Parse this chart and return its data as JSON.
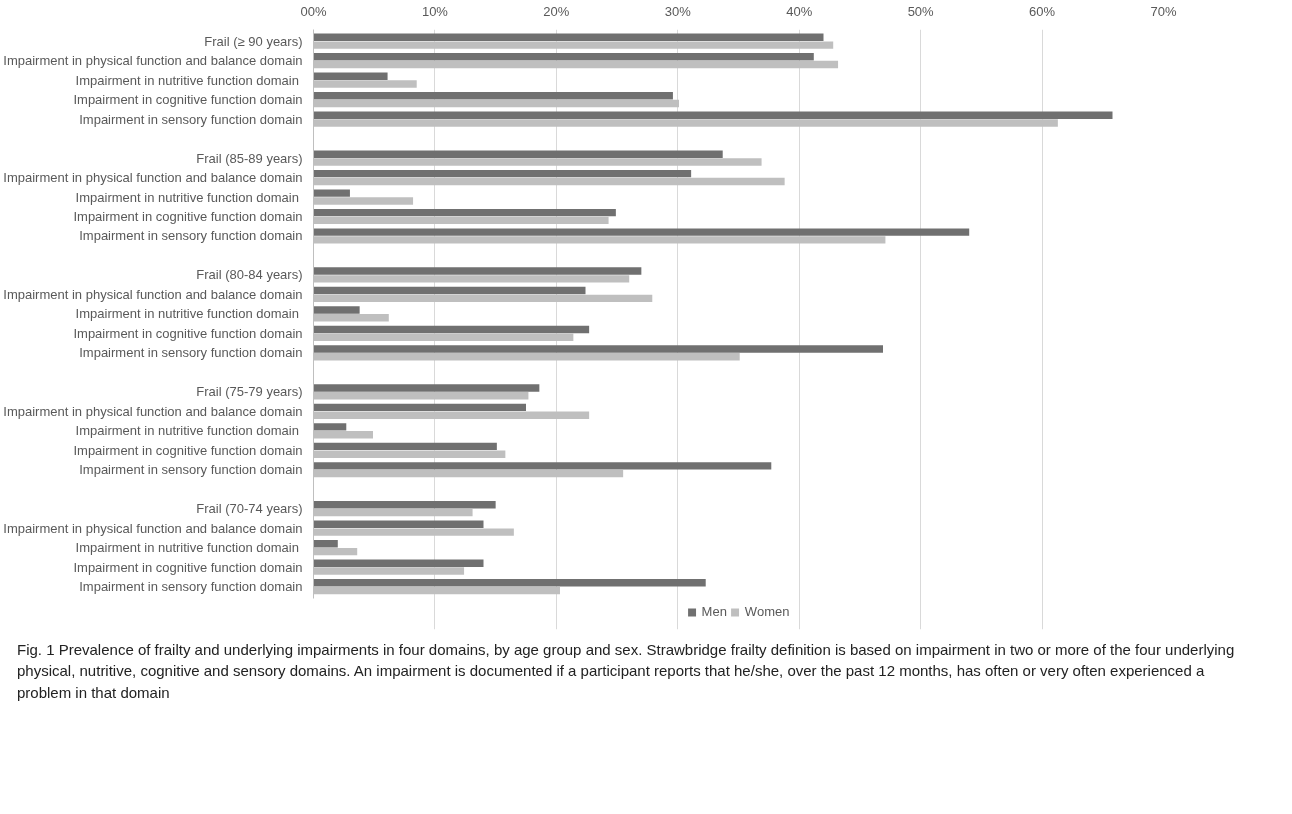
{
  "chart_data": {
    "type": "bar",
    "orientation": "horizontal",
    "categories": [
      "Frail (≥ 90 years)",
      "Impairment in physical function and balance domain",
      "Impairment in  nutritive function domain",
      "Impairment in cognitive function domain",
      "Impairment in sensory function domain",
      null,
      "Frail (85-89 years)",
      "Impairment in physical function and balance domain",
      "Impairment in  nutritive function domain",
      "Impairment in cognitive function domain",
      "Impairment in sensory function domain",
      null,
      "Frail (80-84 years)",
      "Impairment in physical function and balance domain",
      "Impairment in  nutritive function domain",
      "Impairment in cognitive function domain",
      "Impairment in sensory function domain",
      null,
      "Frail (75-79 years)",
      "Impairment in physical function and balance domain",
      "Impairment in  nutritive function domain",
      "Impairment in cognitive function domain",
      "Impairment in sensory function domain",
      null,
      "Frail (70-74 years)",
      "Impairment in physical function and balance domain",
      "Impairment in  nutritive function domain",
      "Impairment in cognitive function domain",
      "Impairment in sensory function domain"
    ],
    "series": [
      {
        "name": "Men",
        "color": "#707070",
        "values": [
          42.0,
          41.2,
          6.1,
          29.6,
          65.8,
          null,
          33.7,
          31.1,
          3.0,
          24.9,
          54.0,
          null,
          27.0,
          22.4,
          3.8,
          22.7,
          46.9,
          null,
          18.6,
          17.5,
          2.7,
          15.1,
          37.7,
          null,
          15.0,
          14.0,
          2.0,
          14.0,
          32.3
        ]
      },
      {
        "name": "Women",
        "color": "#bfbfbf",
        "values": [
          42.8,
          43.2,
          8.5,
          30.1,
          61.3,
          null,
          36.9,
          38.8,
          8.2,
          24.3,
          47.1,
          null,
          26.0,
          27.9,
          6.2,
          21.4,
          35.1,
          null,
          17.7,
          22.7,
          4.9,
          15.8,
          25.5,
          null,
          13.1,
          16.5,
          3.6,
          12.4,
          20.3
        ]
      }
    ],
    "xlim": [
      0,
      70
    ],
    "xticks": [
      {
        "value": 0,
        "label": "00%"
      },
      {
        "value": 10,
        "label": "10%"
      },
      {
        "value": 20,
        "label": "20%"
      },
      {
        "value": 30,
        "label": "30%"
      },
      {
        "value": 40,
        "label": "40%"
      },
      {
        "value": 50,
        "label": "50%"
      },
      {
        "value": 60,
        "label": "60%"
      },
      {
        "value": 70,
        "label": "70%"
      }
    ],
    "grid": "x",
    "legend": "bottom",
    "annotations": [
      "Fig. 1 Prevalence of frailty and underlying impairments in four domains, by age group and sex. Strawbridge frailty definition is based on impairment in two or more of the four underlying physical, nutritive, cognitive and sensory domains. An impairment is documented if a participant reports that he/she, over the past 12 months, has often or very often experienced a problem in that domain"
    ]
  }
}
